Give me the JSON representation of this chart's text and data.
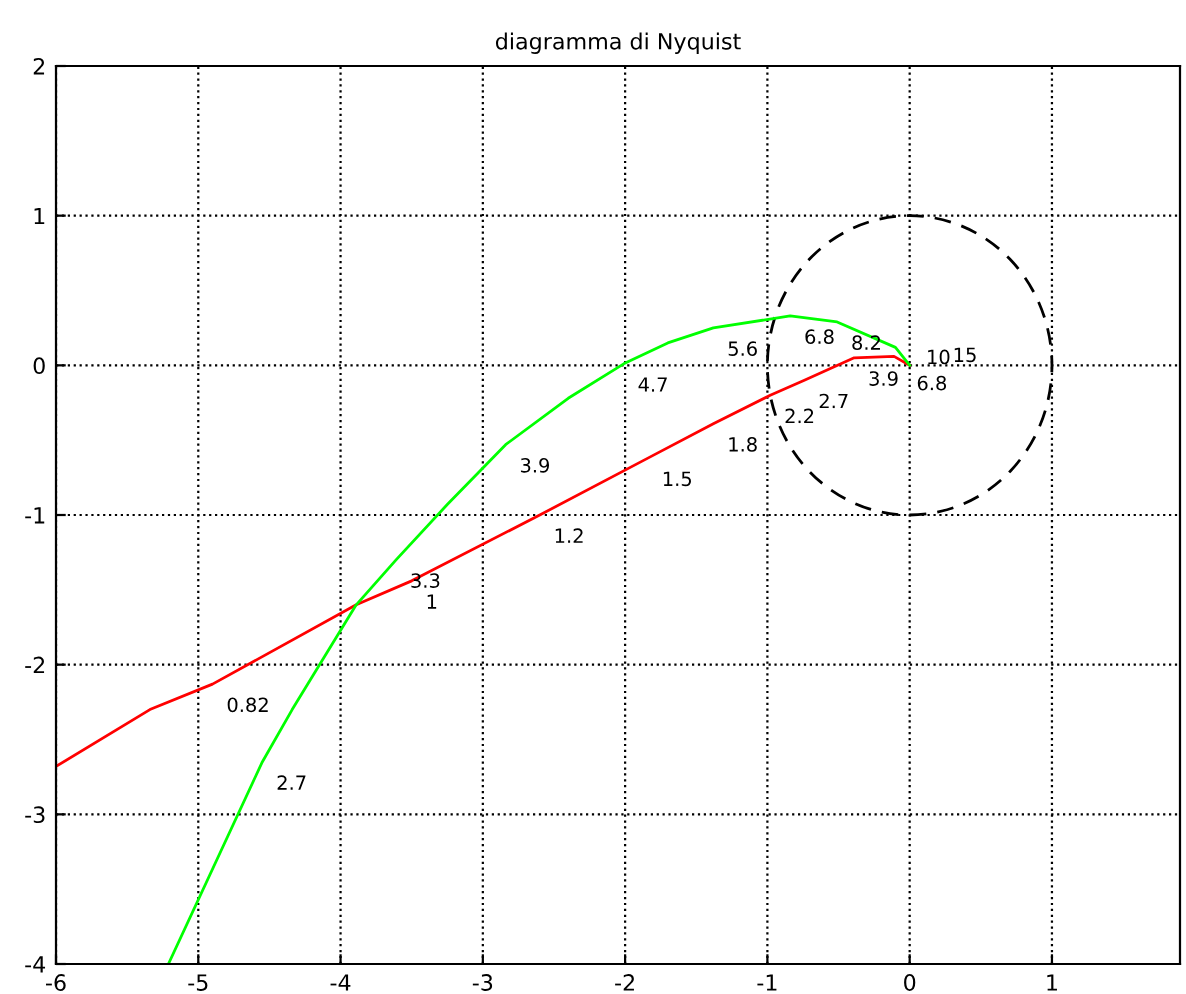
{
  "chart_data": {
    "type": "line",
    "title": "diagramma di Nyquist",
    "series": [
      {
        "color": "#ff0000",
        "x": [
          -6,
          -5.34,
          -4.9,
          -3.89,
          -3.5,
          -2.6,
          -1.84,
          -1.38,
          -0.98,
          -0.74,
          -0.39,
          -0.11,
          0
        ],
        "values": [
          -2.68,
          -2.3,
          -2.13,
          -1.6,
          -1.44,
          -1.0,
          -0.62,
          -0.39,
          -0.2,
          -0.1,
          0.05,
          0.06,
          0
        ]
      },
      {
        "color": "#00ff00",
        "x": [
          -5.21,
          -4.55,
          -4.34,
          -3.89,
          -3.61,
          -3.25,
          -2.84,
          -2.4,
          -2.01,
          -1.7,
          -1.38,
          -0.84,
          -0.51,
          -0.1,
          0
        ],
        "values": [
          -4.0,
          -2.65,
          -2.3,
          -1.6,
          -1.3,
          -0.93,
          -0.53,
          -0.22,
          0.01,
          0.15,
          0.25,
          0.33,
          0.29,
          0.12,
          0
        ]
      }
    ],
    "annotations": [
      {
        "text": "0.82",
        "x": -4.9,
        "y": -2.13
      },
      {
        "text": "1",
        "x": -3.5,
        "y": -1.44
      },
      {
        "text": "1.2",
        "x": -2.6,
        "y": -1.0
      },
      {
        "text": "1.5",
        "x": -1.84,
        "y": -0.62
      },
      {
        "text": "1.8",
        "x": -1.38,
        "y": -0.39
      },
      {
        "text": "2.2",
        "x": -0.98,
        "y": -0.2
      },
      {
        "text": "2.7",
        "x": -0.74,
        "y": -0.1
      },
      {
        "text": "3.9",
        "x": -0.39,
        "y": 0.05
      },
      {
        "text": "6.8",
        "x": -0.05,
        "y": 0.02
      },
      {
        "text": "2.7",
        "x": -4.55,
        "y": -2.65
      },
      {
        "text": "3.3",
        "x": -3.61,
        "y": -1.3
      },
      {
        "text": "3.9",
        "x": -2.84,
        "y": -0.53
      },
      {
        "text": "4.7",
        "x": -2.01,
        "y": 0.01
      },
      {
        "text": "5.6",
        "x": -1.38,
        "y": 0.25
      },
      {
        "text": "6.8",
        "x": -0.84,
        "y": 0.33
      },
      {
        "text": "8.2",
        "x": -0.51,
        "y": 0.29
      },
      {
        "text": "10",
        "x": -0.1,
        "y": 0.12
      },
      {
        "text": "15",
        "x": -0.03,
        "y": 0.06
      }
    ],
    "xlim": [
      -6,
      1.9
    ],
    "ylim": [
      -4,
      2
    ],
    "xticks": [
      -6,
      -5,
      -4,
      -3,
      -2,
      -1,
      0,
      1
    ],
    "yticks": [
      -4,
      -3,
      -2,
      -1,
      0,
      1,
      2
    ],
    "grid": true,
    "legend": false,
    "line_style": "solid"
  }
}
